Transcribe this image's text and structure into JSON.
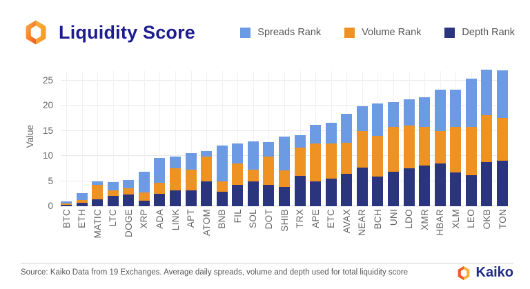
{
  "header": {
    "title": "Liquidity Score"
  },
  "legend": [
    {
      "label": "Spreads Rank",
      "color": "#6C9BE3"
    },
    {
      "label": "Volume Rank",
      "color": "#EE9223"
    },
    {
      "label": "Depth Rank",
      "color": "#2A357D"
    }
  ],
  "chart_data": {
    "type": "bar",
    "stacked": true,
    "title": "Liquidity Score",
    "ylabel": "Value",
    "xlabel": "",
    "yticks": [
      0,
      5,
      10,
      15,
      20,
      25
    ],
    "ylim": [
      0,
      27.7
    ],
    "grid": true,
    "legend_position": "top-right",
    "categories": [
      "BTC",
      "ETH",
      "MATIC",
      "LTC",
      "DOGE",
      "XRP",
      "ADA",
      "LINK",
      "APT",
      "ATOM",
      "BNB",
      "FIL",
      "SOL",
      "DOT",
      "SHIB",
      "TRX",
      "APE",
      "ETC",
      "AVAX",
      "NEAR",
      "BCH",
      "UNI",
      "LDO",
      "XMR",
      "HBAR",
      "XLM",
      "LEO",
      "OKB",
      "TON"
    ],
    "series": [
      {
        "name": "Depth Rank",
        "color": "#2A357D",
        "values": [
          0.3,
          0.7,
          1.4,
          2.0,
          2.3,
          1.1,
          2.4,
          3.1,
          3.2,
          5.0,
          2.9,
          4.3,
          5.0,
          4.2,
          3.9,
          6.0,
          4.9,
          5.5,
          6.5,
          7.7,
          5.9,
          6.9,
          7.6,
          8.1,
          8.5,
          6.7,
          6.2,
          8.8,
          9.1
        ]
      },
      {
        "name": "Volume Rank",
        "color": "#EE9223",
        "values": [
          0.3,
          0.6,
          2.8,
          1.2,
          1.3,
          1.7,
          2.3,
          4.4,
          4.0,
          4.9,
          2.1,
          4.2,
          2.3,
          5.7,
          3.2,
          5.7,
          7.5,
          7.0,
          6.1,
          7.2,
          8.1,
          8.8,
          8.4,
          7.7,
          6.5,
          9.1,
          9.6,
          9.3,
          8.5
        ]
      },
      {
        "name": "Spreads Rank",
        "color": "#6C9BE3",
        "values": [
          0.4,
          1.3,
          0.7,
          1.6,
          1.6,
          4.0,
          4.9,
          2.4,
          3.3,
          1.0,
          7.0,
          4.0,
          5.6,
          2.9,
          6.7,
          2.4,
          3.7,
          4.1,
          5.7,
          4.9,
          6.4,
          5.0,
          5.2,
          5.9,
          8.2,
          7.3,
          9.5,
          9.0,
          9.4
        ]
      }
    ]
  },
  "footer": {
    "source": "Source: Kaiko Data from 19 Exchanges. Average daily spreads, volume and depth used for total liquidity score",
    "brand": "Kaiko"
  }
}
